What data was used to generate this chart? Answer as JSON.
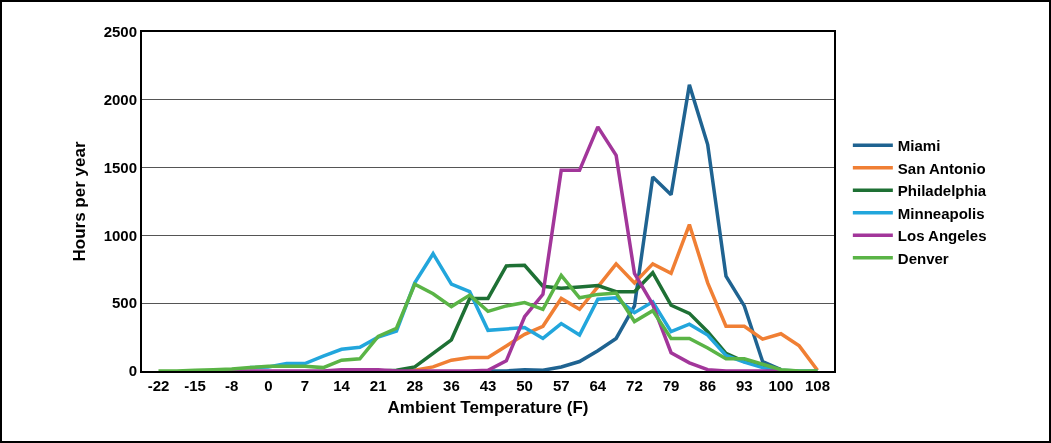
{
  "chart_data": {
    "type": "line",
    "xlabel": "Ambient Temperature (F)",
    "ylabel": "Hours per year",
    "categories": [
      "-22",
      null,
      "-15",
      null,
      "-8",
      null,
      "0",
      null,
      "7",
      null,
      "14",
      null,
      "21",
      null,
      "28",
      null,
      "36",
      null,
      "43",
      null,
      "50",
      null,
      "57",
      null,
      "64",
      null,
      "72",
      null,
      "79",
      null,
      "86",
      null,
      "93",
      null,
      "100",
      null,
      "108"
    ],
    "series": [
      {
        "name": "Miami",
        "color": "#1f6391",
        "values": [
          null,
          null,
          null,
          null,
          null,
          null,
          null,
          null,
          null,
          null,
          null,
          null,
          null,
          null,
          null,
          null,
          null,
          null,
          0,
          0,
          10,
          5,
          30,
          70,
          150,
          240,
          480,
          1430,
          1300,
          2110,
          1670,
          700,
          480,
          70,
          10,
          null,
          null
        ]
      },
      {
        "name": "San Antonio",
        "color": "#f07f34",
        "values": [
          null,
          null,
          null,
          null,
          null,
          null,
          null,
          null,
          null,
          null,
          null,
          null,
          null,
          0,
          5,
          30,
          80,
          100,
          100,
          185,
          270,
          330,
          535,
          455,
          620,
          790,
          650,
          790,
          720,
          1080,
          650,
          330,
          330,
          235,
          275,
          185,
          5
        ]
      },
      {
        "name": "Philadelphia",
        "color": "#1e7034",
        "values": [
          null,
          null,
          null,
          null,
          null,
          null,
          null,
          null,
          null,
          null,
          null,
          null,
          0,
          5,
          30,
          130,
          230,
          535,
          535,
          775,
          780,
          625,
          610,
          620,
          630,
          585,
          585,
          725,
          485,
          425,
          290,
          130,
          70,
          40,
          10,
          null,
          null
        ]
      },
      {
        "name": "Minneapolis",
        "color": "#22a6dc",
        "values": [
          null,
          null,
          null,
          null,
          null,
          25,
          30,
          55,
          55,
          110,
          160,
          175,
          250,
          295,
          650,
          865,
          640,
          585,
          300,
          310,
          320,
          240,
          350,
          265,
          530,
          540,
          430,
          510,
          290,
          345,
          265,
          115,
          65,
          25,
          5,
          0,
          0
        ]
      },
      {
        "name": "Los Angeles",
        "color": "#a2369a",
        "values": [
          null,
          null,
          0,
          0,
          0,
          0,
          0,
          0,
          0,
          0,
          10,
          10,
          10,
          0,
          0,
          0,
          0,
          0,
          5,
          75,
          400,
          565,
          1480,
          1480,
          1800,
          1590,
          720,
          490,
          135,
          60,
          10,
          0,
          0,
          0,
          0,
          null,
          null
        ]
      },
      {
        "name": "Denver",
        "color": "#5ab446",
        "values": [
          0,
          0,
          5,
          10,
          15,
          25,
          35,
          35,
          35,
          25,
          80,
          90,
          255,
          315,
          640,
          570,
          475,
          560,
          440,
          480,
          505,
          455,
          705,
          540,
          565,
          575,
          365,
          445,
          240,
          240,
          170,
          90,
          90,
          50,
          10,
          0,
          0
        ]
      }
    ],
    "ylim": [
      0,
      2500
    ],
    "yticks": [
      0,
      500,
      1000,
      1500,
      2000,
      2500
    ],
    "grid": "y",
    "legend": "right",
    "marker": "none",
    "line_style": "solid"
  }
}
